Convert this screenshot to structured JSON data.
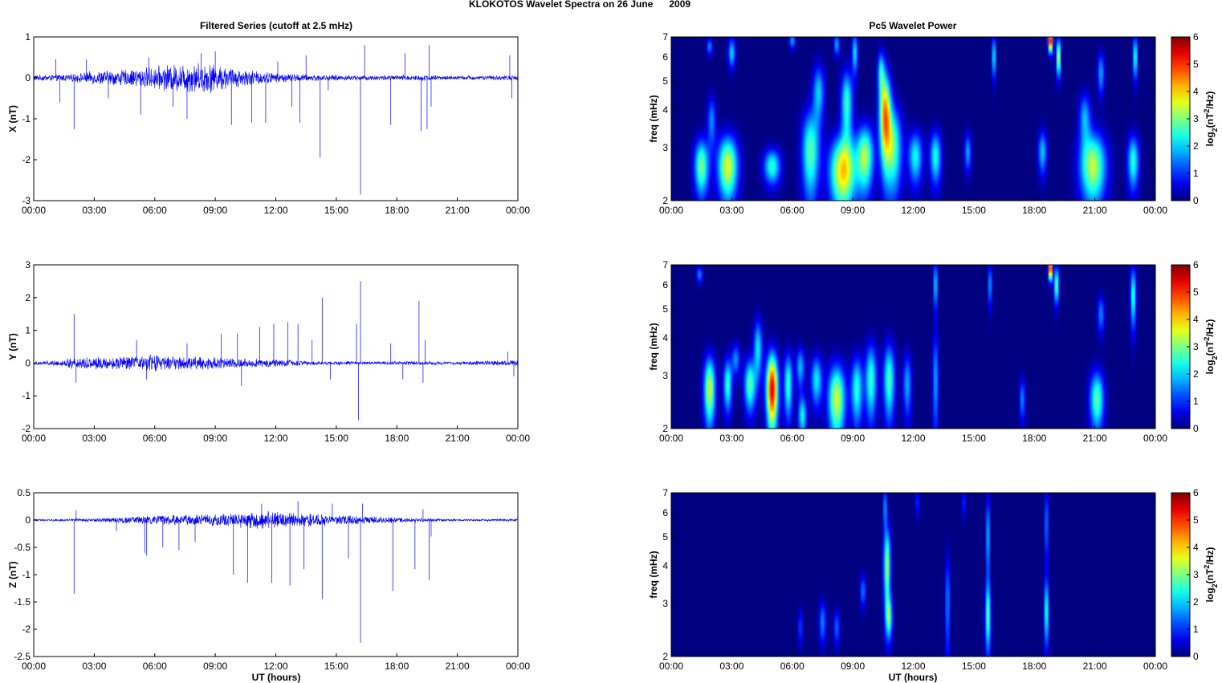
{
  "figure": {
    "title": "KLOKOTOS Wavelet Spectra on 26 June      2009",
    "left_title": "Filtered Series (cutoff at 2.5 mHz)",
    "right_title": "Pc5 Wavelet Power",
    "xlabel": "UT (hours)"
  },
  "time_ticks": [
    "00:00",
    "03:00",
    "06:00",
    "09:00",
    "12:00",
    "15:00",
    "18:00",
    "21:00",
    "00:00"
  ],
  "chart_data": [
    {
      "type": "line",
      "panel": "X",
      "ylabel": "X (nT)",
      "xlim_hours": [
        0,
        24
      ],
      "ylim": [
        -3,
        1
      ],
      "yticks": [
        "1",
        "0",
        "-1",
        "-2",
        "-3"
      ],
      "ytick_values": [
        1,
        0,
        -1,
        -2,
        -3
      ],
      "line_color": "#0000ff",
      "noise_profile": [
        [
          0,
          0.06
        ],
        [
          2,
          0.08
        ],
        [
          3,
          0.14
        ],
        [
          5,
          0.18
        ],
        [
          7,
          0.28
        ],
        [
          8.5,
          0.32
        ],
        [
          10,
          0.2
        ],
        [
          12,
          0.1
        ],
        [
          14,
          0.06
        ],
        [
          17,
          0.05
        ],
        [
          19,
          0.06
        ],
        [
          21,
          0.04
        ],
        [
          24,
          0.05
        ]
      ],
      "spikes": [
        [
          1.1,
          0.45
        ],
        [
          1.3,
          -0.6
        ],
        [
          2.0,
          -1.25
        ],
        [
          2.6,
          0.45
        ],
        [
          3.7,
          -0.5
        ],
        [
          5.3,
          -0.9
        ],
        [
          5.7,
          0.5
        ],
        [
          6.9,
          -0.7
        ],
        [
          7.6,
          -1.0
        ],
        [
          8.3,
          0.6
        ],
        [
          9.0,
          0.65
        ],
        [
          9.8,
          -1.15
        ],
        [
          10.8,
          -1.1
        ],
        [
          11.5,
          -1.1
        ],
        [
          12.1,
          0.4
        ],
        [
          12.8,
          -0.7
        ],
        [
          13.2,
          -1.1
        ],
        [
          13.5,
          0.55
        ],
        [
          14.2,
          -1.95
        ],
        [
          14.6,
          -0.3
        ],
        [
          16.2,
          -2.85
        ],
        [
          16.4,
          0.8
        ],
        [
          17.7,
          -1.15
        ],
        [
          18.4,
          0.6
        ],
        [
          19.2,
          -1.3
        ],
        [
          19.5,
          -1.25
        ],
        [
          19.6,
          0.8
        ],
        [
          19.7,
          -0.7
        ],
        [
          23.6,
          0.55
        ],
        [
          23.7,
          -0.5
        ]
      ]
    },
    {
      "type": "line",
      "panel": "Y",
      "ylabel": "Y (nT)",
      "xlim_hours": [
        0,
        24
      ],
      "ylim": [
        -2,
        3
      ],
      "yticks": [
        "3",
        "2",
        "1",
        "0",
        "-1",
        "-2"
      ],
      "ytick_values": [
        3,
        2,
        1,
        0,
        -1,
        -2
      ],
      "line_color": "#0000ff",
      "noise_profile": [
        [
          0,
          0.05
        ],
        [
          1.5,
          0.08
        ],
        [
          2,
          0.18
        ],
        [
          3,
          0.16
        ],
        [
          5,
          0.18
        ],
        [
          6,
          0.22
        ],
        [
          8,
          0.18
        ],
        [
          10,
          0.12
        ],
        [
          12,
          0.1
        ],
        [
          14,
          0.05
        ],
        [
          17,
          0.04
        ],
        [
          19,
          0.05
        ],
        [
          21,
          0.04
        ],
        [
          24,
          0.08
        ]
      ],
      "spikes": [
        [
          2.0,
          1.5
        ],
        [
          2.1,
          -0.6
        ],
        [
          5.1,
          0.7
        ],
        [
          5.6,
          -0.5
        ],
        [
          7.6,
          0.6
        ],
        [
          9.3,
          0.9
        ],
        [
          10.1,
          0.9
        ],
        [
          10.3,
          -0.7
        ],
        [
          11.2,
          1.1
        ],
        [
          11.9,
          1.2
        ],
        [
          12.6,
          1.25
        ],
        [
          13.1,
          1.2
        ],
        [
          13.8,
          0.7
        ],
        [
          14.3,
          2.0
        ],
        [
          14.7,
          -0.5
        ],
        [
          16.0,
          1.2
        ],
        [
          16.1,
          -1.75
        ],
        [
          16.2,
          2.5
        ],
        [
          17.7,
          0.6
        ],
        [
          18.3,
          -0.5
        ],
        [
          19.1,
          1.9
        ],
        [
          19.3,
          -0.6
        ],
        [
          19.4,
          0.7
        ],
        [
          23.5,
          0.35
        ],
        [
          23.8,
          -0.4
        ]
      ]
    },
    {
      "type": "line",
      "panel": "Z",
      "ylabel": "Z (nT)",
      "xlim_hours": [
        0,
        24
      ],
      "ylim": [
        -2.5,
        0.5
      ],
      "yticks": [
        "0.5",
        "0",
        "-0.5",
        "-1",
        "-1.5",
        "-2",
        "-2.5"
      ],
      "ytick_values": [
        0.5,
        0,
        -0.5,
        -1,
        -1.5,
        -2,
        -2.5
      ],
      "line_color": "#0000ff",
      "noise_profile": [
        [
          0,
          0.015
        ],
        [
          2,
          0.02
        ],
        [
          4,
          0.04
        ],
        [
          6,
          0.07
        ],
        [
          9,
          0.09
        ],
        [
          11,
          0.14
        ],
        [
          13,
          0.12
        ],
        [
          15,
          0.08
        ],
        [
          17,
          0.05
        ],
        [
          19,
          0.03
        ],
        [
          21,
          0.015
        ],
        [
          24,
          0.02
        ]
      ],
      "spikes": [
        [
          2.0,
          -1.35
        ],
        [
          2.1,
          0.18
        ],
        [
          4.1,
          -0.2
        ],
        [
          5.5,
          -0.6
        ],
        [
          5.6,
          -0.65
        ],
        [
          6.4,
          -0.5
        ],
        [
          7.2,
          -0.55
        ],
        [
          8.0,
          -0.4
        ],
        [
          9.9,
          -1.0
        ],
        [
          10.6,
          -1.15
        ],
        [
          11.3,
          0.3
        ],
        [
          11.8,
          -1.15
        ],
        [
          12.7,
          -1.2
        ],
        [
          13.1,
          0.35
        ],
        [
          13.4,
          -0.9
        ],
        [
          14.3,
          -1.45
        ],
        [
          14.8,
          0.3
        ],
        [
          15.6,
          -0.7
        ],
        [
          16.2,
          -2.25
        ],
        [
          16.3,
          0.3
        ],
        [
          17.8,
          -1.3
        ],
        [
          18.9,
          -0.9
        ],
        [
          19.3,
          0.2
        ],
        [
          19.6,
          -1.1
        ],
        [
          19.7,
          -0.3
        ]
      ]
    },
    {
      "type": "heatmap",
      "panel": "X",
      "ylabel": "freq (mHz)",
      "xlim_hours": [
        0,
        24
      ],
      "ylim_mhz": [
        2,
        7
      ],
      "y_scale": "log",
      "yticks": [
        "7",
        "6",
        "5",
        "4",
        "3",
        "2"
      ],
      "ytick_values": [
        7,
        6,
        5,
        4,
        3,
        2
      ],
      "colorbar": {
        "label_prefix": "log",
        "label_sub": "2",
        "label_mid": "(nT",
        "label_sup": "2",
        "label_suffix": "/Hz)",
        "ticks": [
          "6",
          "5",
          "4",
          "3",
          "2",
          "1",
          "0"
        ],
        "tick_values": [
          6,
          5,
          4,
          3,
          2,
          1,
          0
        ],
        "range": [
          0,
          6
        ]
      },
      "blobs": [
        [
          1.5,
          2.6,
          0.25,
          0.4,
          3.0
        ],
        [
          2.8,
          2.6,
          0.35,
          0.45,
          3.6
        ],
        [
          5.0,
          2.6,
          0.3,
          0.25,
          2.5
        ],
        [
          6.9,
          2.9,
          0.3,
          0.7,
          2.8
        ],
        [
          8.5,
          2.5,
          0.45,
          0.5,
          4.0
        ],
        [
          9.6,
          2.8,
          0.3,
          0.5,
          3.2
        ],
        [
          10.6,
          3.9,
          0.2,
          0.9,
          4.3
        ],
        [
          11.0,
          3.0,
          0.3,
          0.7,
          2.8
        ],
        [
          12.1,
          2.8,
          0.25,
          0.4,
          2.3
        ],
        [
          13.1,
          2.8,
          0.2,
          0.4,
          2.4
        ],
        [
          14.7,
          2.9,
          0.12,
          0.3,
          1.8
        ],
        [
          18.4,
          2.9,
          0.15,
          0.35,
          2.0
        ],
        [
          20.9,
          2.6,
          0.45,
          0.5,
          3.4
        ],
        [
          22.9,
          2.7,
          0.2,
          0.4,
          2.5
        ],
        [
          2.0,
          3.7,
          0.15,
          0.5,
          1.6
        ],
        [
          8.7,
          4.2,
          0.2,
          0.8,
          2.6
        ],
        [
          7.3,
          4.6,
          0.2,
          0.7,
          2.0
        ],
        [
          3.0,
          6.2,
          0.12,
          0.5,
          2.1
        ],
        [
          9.1,
          6.2,
          0.1,
          0.7,
          2.2
        ],
        [
          10.4,
          5.4,
          0.12,
          0.6,
          2.0
        ],
        [
          1.9,
          6.5,
          0.1,
          0.3,
          1.6
        ],
        [
          18.8,
          6.8,
          0.08,
          0.4,
          6.0
        ],
        [
          19.2,
          6.0,
          0.08,
          0.6,
          3.6
        ],
        [
          16.0,
          6.0,
          0.06,
          0.7,
          2.6
        ],
        [
          23.0,
          6.0,
          0.08,
          0.7,
          2.6
        ],
        [
          21.3,
          5.3,
          0.12,
          0.6,
          1.8
        ],
        [
          20.5,
          3.8,
          0.2,
          0.5,
          1.8
        ],
        [
          6.0,
          6.8,
          0.1,
          0.3,
          1.8
        ],
        [
          8.2,
          6.6,
          0.1,
          0.4,
          1.8
        ]
      ]
    },
    {
      "type": "heatmap",
      "panel": "Y",
      "ylabel": "freq (mHz)",
      "xlim_hours": [
        0,
        24
      ],
      "ylim_mhz": [
        2,
        7
      ],
      "y_scale": "log",
      "yticks": [
        "7",
        "6",
        "5",
        "4",
        "3",
        "2"
      ],
      "ytick_values": [
        7,
        6,
        5,
        4,
        3,
        2
      ],
      "colorbar": {
        "label_prefix": "log",
        "label_sub": "2",
        "label_mid": "(nT",
        "label_sup": "2",
        "label_suffix": "/Hz)",
        "ticks": [
          "6",
          "5",
          "4",
          "3",
          "2",
          "1",
          "0"
        ],
        "tick_values": [
          6,
          5,
          4,
          3,
          2,
          1,
          0
        ],
        "range": [
          0,
          6
        ]
      },
      "blobs": [
        [
          1.9,
          2.7,
          0.2,
          0.5,
          3.5
        ],
        [
          2.8,
          2.8,
          0.15,
          0.4,
          2.6
        ],
        [
          3.9,
          2.8,
          0.2,
          0.4,
          2.8
        ],
        [
          5.0,
          2.7,
          0.2,
          0.55,
          5.5
        ],
        [
          4.3,
          3.7,
          0.15,
          0.6,
          2.2
        ],
        [
          5.8,
          2.8,
          0.15,
          0.5,
          2.6
        ],
        [
          6.5,
          2.2,
          0.15,
          0.25,
          2.3
        ],
        [
          7.2,
          2.9,
          0.2,
          0.4,
          2.2
        ],
        [
          8.2,
          2.5,
          0.3,
          0.5,
          3.5
        ],
        [
          9.2,
          2.7,
          0.2,
          0.5,
          2.5
        ],
        [
          9.9,
          2.9,
          0.2,
          0.6,
          2.6
        ],
        [
          10.8,
          2.9,
          0.2,
          0.6,
          2.7
        ],
        [
          11.7,
          2.8,
          0.15,
          0.5,
          1.8
        ],
        [
          13.1,
          2.9,
          0.1,
          0.8,
          1.8
        ],
        [
          13.1,
          6.0,
          0.06,
          0.8,
          2.4
        ],
        [
          15.8,
          6.0,
          0.06,
          0.7,
          2.0
        ],
        [
          17.4,
          2.5,
          0.1,
          0.3,
          1.6
        ],
        [
          18.8,
          6.8,
          0.07,
          0.4,
          6.0
        ],
        [
          19.1,
          6.0,
          0.08,
          0.6,
          3.0
        ],
        [
          21.1,
          2.5,
          0.25,
          0.4,
          2.8
        ],
        [
          22.9,
          5.5,
          0.1,
          0.9,
          2.6
        ],
        [
          21.3,
          4.8,
          0.12,
          0.5,
          1.6
        ],
        [
          1.4,
          6.5,
          0.1,
          0.3,
          1.6
        ],
        [
          3.2,
          3.4,
          0.15,
          0.3,
          1.6
        ],
        [
          6.4,
          3.2,
          0.15,
          0.35,
          1.9
        ]
      ]
    },
    {
      "type": "heatmap",
      "panel": "Z",
      "ylabel": "freq (mHz)",
      "xlim_hours": [
        0,
        24
      ],
      "ylim_mhz": [
        2,
        7
      ],
      "y_scale": "log",
      "yticks": [
        "7",
        "6",
        "5",
        "4",
        "3",
        "2"
      ],
      "ytick_values": [
        7,
        6,
        5,
        4,
        3,
        2
      ],
      "colorbar": {
        "label_prefix": "log",
        "label_sub": "2",
        "label_mid": "(nT",
        "label_sup": "2",
        "label_suffix": "/Hz)",
        "ticks": [
          "6",
          "5",
          "4",
          "3",
          "2",
          "1",
          "0"
        ],
        "tick_values": [
          6,
          5,
          4,
          3,
          2,
          1,
          0
        ],
        "range": [
          0,
          6
        ]
      },
      "blobs": [
        [
          10.7,
          4.0,
          0.12,
          0.9,
          3.2
        ],
        [
          10.8,
          2.7,
          0.12,
          0.3,
          2.4
        ],
        [
          10.6,
          6.3,
          0.05,
          0.7,
          2.2
        ],
        [
          13.7,
          3.0,
          0.08,
          0.9,
          1.6
        ],
        [
          15.7,
          2.7,
          0.1,
          0.5,
          2.6
        ],
        [
          15.7,
          5.0,
          0.06,
          1.2,
          2.2
        ],
        [
          18.6,
          2.8,
          0.08,
          0.5,
          2.5
        ],
        [
          18.6,
          5.5,
          0.05,
          1.2,
          2.0
        ],
        [
          7.5,
          2.6,
          0.12,
          0.3,
          1.6
        ],
        [
          8.2,
          2.5,
          0.1,
          0.25,
          1.4
        ],
        [
          9.5,
          3.3,
          0.1,
          0.3,
          1.5
        ],
        [
          6.4,
          2.5,
          0.08,
          0.25,
          1.2
        ],
        [
          12.2,
          6.5,
          0.05,
          0.5,
          1.4
        ],
        [
          14.5,
          6.5,
          0.05,
          0.5,
          1.4
        ]
      ]
    }
  ]
}
